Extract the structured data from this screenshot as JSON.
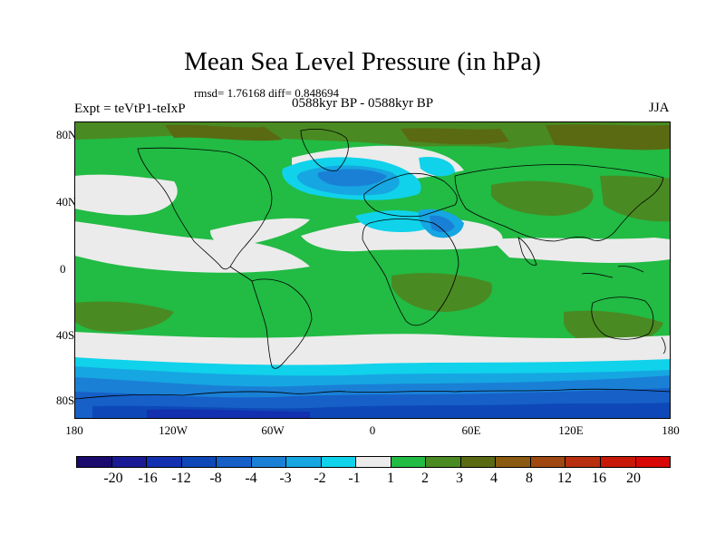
{
  "title": "Mean Sea Level Pressure (in hPa)",
  "stats": "rmsd= 1.76168 diff= 0.848694",
  "expt_label": "Expt = teVtP1-teIxP",
  "period_label": "0588kyr BP - 0588kyr BP",
  "season": "JJA",
  "lat_ticks": [
    "80N",
    "40N",
    "0",
    "40S",
    "80S"
  ],
  "lon_ticks": [
    "180",
    "120W",
    "60W",
    "0",
    "60E",
    "120E",
    "180"
  ],
  "colorbar": {
    "labels": [
      "-20",
      "-16",
      "-12",
      "-8",
      "-4",
      "-3",
      "-2",
      "-1",
      "1",
      "2",
      "3",
      "4",
      "8",
      "12",
      "16",
      "20"
    ],
    "colors": [
      "#1a0a6e",
      "#1a1a96",
      "#1230b0",
      "#0e48b8",
      "#1660c8",
      "#1a80d6",
      "#16a6e2",
      "#10d2ea",
      "#ebebeb",
      "#22bb44",
      "#4a8a22",
      "#5a6a12",
      "#8a5a12",
      "#a04812",
      "#b83010",
      "#c81808",
      "#d80808"
    ]
  }
}
